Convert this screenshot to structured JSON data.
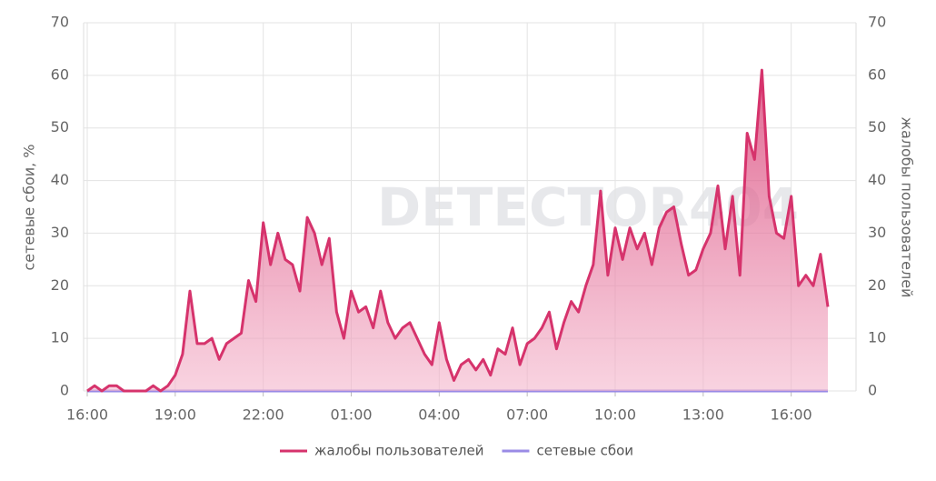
{
  "chart_data": {
    "type": "line",
    "watermark": "DETECTOR404",
    "y_label": "сетевые сбои, %",
    "y2_label": "жалобы пользователей",
    "categories": [
      "16:00",
      null,
      null,
      null,
      null,
      null,
      null,
      null,
      null,
      null,
      null,
      null,
      "19:00",
      null,
      null,
      null,
      null,
      null,
      null,
      null,
      null,
      null,
      null,
      null,
      "22:00",
      null,
      null,
      null,
      null,
      null,
      null,
      null,
      null,
      null,
      null,
      null,
      "01:00",
      null,
      null,
      null,
      null,
      null,
      null,
      null,
      null,
      null,
      null,
      null,
      "04:00",
      null,
      null,
      null,
      null,
      null,
      null,
      null,
      null,
      null,
      null,
      null,
      "07:00",
      null,
      null,
      null,
      null,
      null,
      null,
      null,
      null,
      null,
      null,
      null,
      "10:00",
      null,
      null,
      null,
      null,
      null,
      null,
      null,
      null,
      null,
      null,
      null,
      "13:00",
      null,
      null,
      null,
      null,
      null,
      null,
      null,
      null,
      null,
      null,
      null,
      "16:00",
      null,
      null,
      null,
      null,
      null
    ],
    "series": [
      {
        "name": "жалобы пользователей",
        "color": "#d6336c",
        "axis": "y2",
        "fill": true,
        "values": [
          0,
          1,
          0,
          1,
          1,
          0,
          0,
          0,
          0,
          1,
          0,
          1,
          3,
          7,
          19,
          9,
          9,
          10,
          6,
          9,
          10,
          11,
          21,
          17,
          32,
          24,
          30,
          25,
          24,
          19,
          33,
          30,
          24,
          29,
          15,
          10,
          19,
          15,
          16,
          12,
          19,
          13,
          10,
          12,
          13,
          10,
          7,
          5,
          13,
          6,
          2,
          5,
          6,
          4,
          6,
          3,
          8,
          7,
          12,
          5,
          9,
          10,
          12,
          15,
          8,
          13,
          17,
          15,
          20,
          24,
          38,
          22,
          31,
          25,
          31,
          27,
          30,
          24,
          31,
          34,
          35,
          28,
          22,
          23,
          27,
          30,
          39,
          27,
          37,
          22,
          49,
          44,
          61,
          37,
          30,
          29,
          37,
          20,
          22,
          20,
          26,
          16
        ]
      },
      {
        "name": "сетевые сбои",
        "color": "#9a8be6",
        "axis": "y",
        "values": [
          0,
          0,
          0,
          0,
          0,
          0,
          0,
          0,
          0,
          0,
          0,
          0,
          0,
          0,
          0,
          0,
          0,
          0,
          0,
          0,
          0,
          0,
          0,
          0,
          0,
          0,
          0,
          0,
          0,
          0,
          0,
          0,
          0,
          0,
          0,
          0,
          0,
          0,
          0,
          0,
          0,
          0,
          0,
          0,
          0,
          0,
          0,
          0,
          0,
          0,
          0,
          0,
          0,
          0,
          0,
          0,
          0,
          0,
          0,
          0,
          0,
          0,
          0,
          0,
          0,
          0,
          0,
          0,
          0,
          0,
          0,
          0,
          0,
          0,
          0,
          0,
          0,
          0,
          0,
          0,
          0,
          0,
          0,
          0,
          0,
          0,
          0,
          0,
          0,
          0,
          0,
          0,
          0,
          0,
          0,
          0,
          0,
          0,
          0,
          0,
          0,
          0
        ]
      }
    ],
    "ylim": [
      0,
      70
    ],
    "yticks": [
      0,
      10,
      20,
      30,
      40,
      50,
      60,
      70
    ],
    "y2lim": [
      0,
      70
    ],
    "y2ticks": [
      0,
      10,
      20,
      30,
      40,
      50,
      60,
      70
    ],
    "grid": true,
    "legend": "bottom"
  }
}
